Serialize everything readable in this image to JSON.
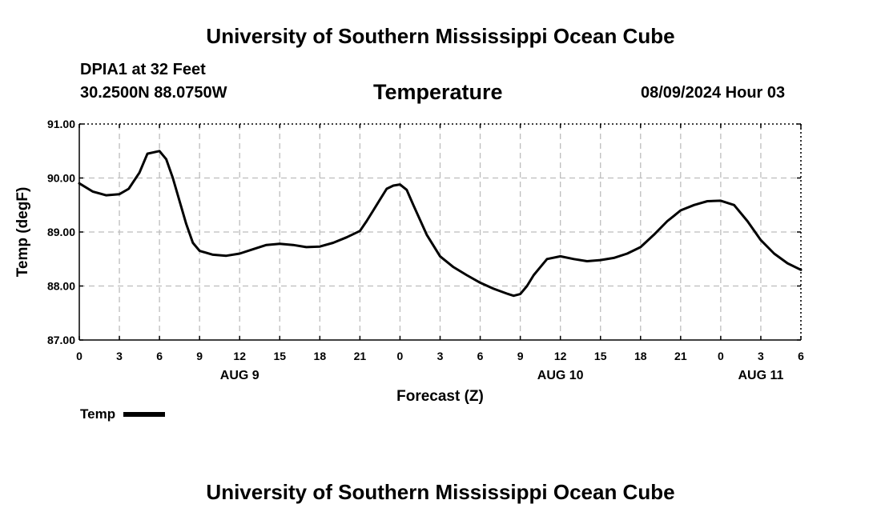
{
  "header": {
    "title": "University of Southern Mississippi Ocean Cube",
    "station": "DPIA1 at 32 Feet",
    "coordinates": "30.2500N  88.0750W",
    "issued": "08/09/2024 Hour 03"
  },
  "footer": {
    "title": "University of Southern Mississippi Ocean Cube"
  },
  "legend": {
    "label": "Temp"
  },
  "chart_data": {
    "type": "line",
    "title": "Temperature",
    "xlabel": "Forecast (Z)",
    "ylabel": "Temp (degF)",
    "xlim": [
      0,
      54
    ],
    "ylim": [
      87.0,
      91.0
    ],
    "grid": true,
    "yticks": [
      87.0,
      88.0,
      89.0,
      90.0,
      91.0
    ],
    "ytick_labels": [
      "87.00",
      "88.00",
      "89.00",
      "90.00",
      "91.00"
    ],
    "xticks": [
      0,
      3,
      6,
      9,
      12,
      15,
      18,
      21,
      24,
      27,
      30,
      33,
      36,
      39,
      42,
      45,
      48,
      51,
      54
    ],
    "xtick_labels": [
      "0",
      "3",
      "6",
      "9",
      "12",
      "15",
      "18",
      "21",
      "0",
      "3",
      "6",
      "9",
      "12",
      "15",
      "18",
      "21",
      "0",
      "3",
      "6"
    ],
    "date_labels": [
      {
        "x": 12,
        "label": "AUG 9"
      },
      {
        "x": 36,
        "label": "AUG 10"
      },
      {
        "x": 51,
        "label": "AUG 11"
      }
    ],
    "series": [
      {
        "name": "Temp",
        "color": "#000000",
        "x": [
          0,
          1,
          2,
          3,
          3.7,
          4.5,
          5.1,
          6,
          6.5,
          7,
          8,
          8.5,
          9,
          10,
          11,
          12,
          13,
          14,
          15,
          16,
          17,
          18,
          19,
          20,
          21,
          21.5,
          22,
          22.5,
          23,
          23.5,
          24,
          24.5,
          25,
          26,
          27,
          28,
          29,
          30,
          31,
          32,
          32.5,
          33,
          33.5,
          34,
          34.5,
          35,
          36,
          37,
          38,
          39,
          40,
          41,
          42,
          43,
          44,
          44.5,
          45,
          46,
          47,
          48,
          49,
          50,
          51,
          52,
          53,
          54
        ],
        "y": [
          89.9,
          89.75,
          89.68,
          89.7,
          89.8,
          90.1,
          90.45,
          90.5,
          90.35,
          90.0,
          89.15,
          88.8,
          88.65,
          88.58,
          88.56,
          88.6,
          88.68,
          88.76,
          88.78,
          88.76,
          88.72,
          88.73,
          88.8,
          88.9,
          89.02,
          89.2,
          89.4,
          89.6,
          89.8,
          89.86,
          89.88,
          89.78,
          89.5,
          88.95,
          88.55,
          88.35,
          88.2,
          88.06,
          87.95,
          87.86,
          87.82,
          87.85,
          88.0,
          88.2,
          88.35,
          88.5,
          88.55,
          88.5,
          88.46,
          88.48,
          88.52,
          88.6,
          88.72,
          88.95,
          89.2,
          89.3,
          89.4,
          89.5,
          89.57,
          89.58,
          89.5,
          89.2,
          88.85,
          88.6,
          88.42,
          88.3
        ]
      }
    ]
  }
}
